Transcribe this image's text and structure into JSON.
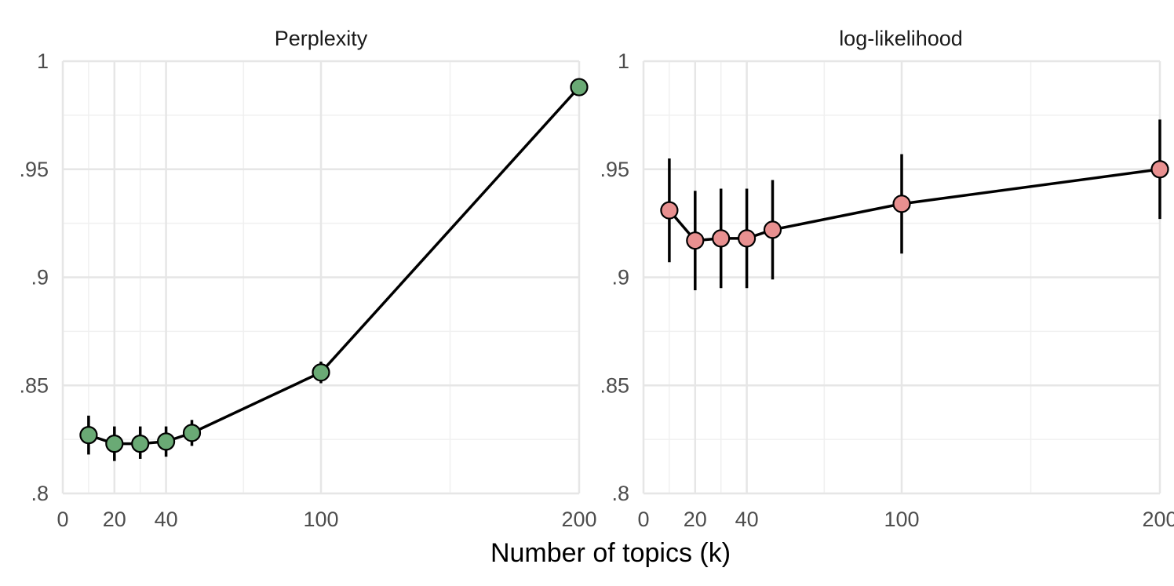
{
  "chart_data": {
    "type": "line",
    "xlabel": "Number of topics (k)",
    "x_ticks": [
      0,
      20,
      40,
      100,
      200
    ],
    "y_ticks": [
      ".8",
      ".85",
      ".9",
      ".95",
      "1"
    ],
    "xlim": [
      0,
      200
    ],
    "ylim": [
      0.8,
      1.0
    ],
    "grid": true,
    "legend": "none",
    "panels": [
      {
        "title": "Perplexity",
        "color": "#6aaa75",
        "x": [
          10,
          20,
          30,
          40,
          50,
          100,
          200
        ],
        "y": [
          0.827,
          0.823,
          0.823,
          0.824,
          0.828,
          0.856,
          0.988
        ],
        "err_low": [
          0.818,
          0.815,
          0.816,
          0.817,
          0.822,
          0.851,
          0.988
        ],
        "err_high": [
          0.836,
          0.831,
          0.831,
          0.831,
          0.834,
          0.861,
          0.988
        ]
      },
      {
        "title": "log-likelihood",
        "color": "#e89090",
        "x": [
          10,
          20,
          30,
          40,
          50,
          100,
          200
        ],
        "y": [
          0.931,
          0.917,
          0.918,
          0.918,
          0.922,
          0.934,
          0.95
        ],
        "err_low": [
          0.907,
          0.894,
          0.895,
          0.895,
          0.899,
          0.911,
          0.927
        ],
        "err_high": [
          0.955,
          0.94,
          0.941,
          0.941,
          0.945,
          0.957,
          0.973
        ]
      }
    ]
  }
}
